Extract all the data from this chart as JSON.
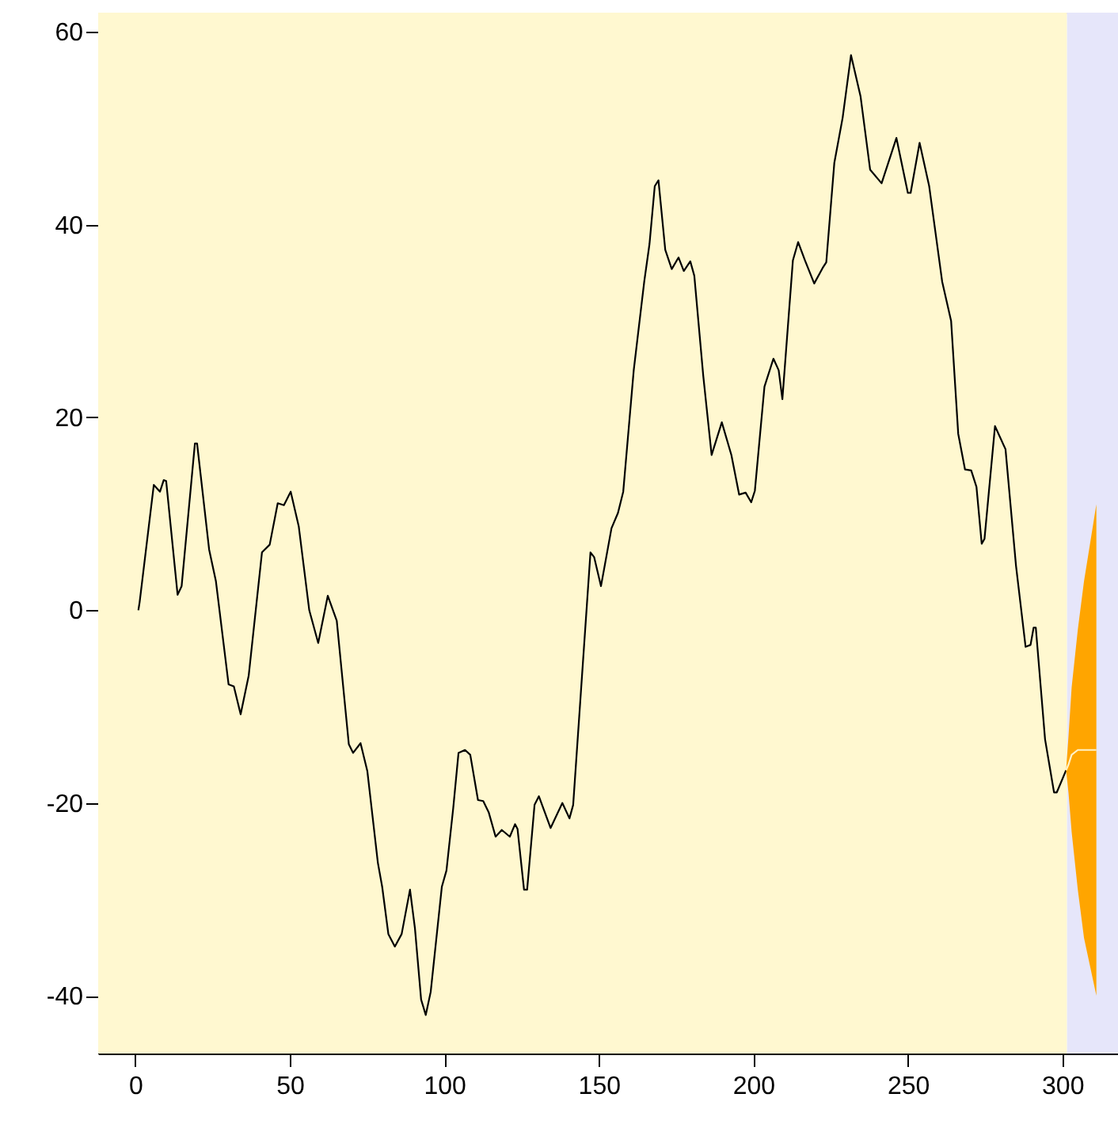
{
  "chart_data": {
    "type": "line",
    "xlim": [
      -12,
      318
    ],
    "ylim": [
      -46,
      62
    ],
    "xticks": [
      0,
      50,
      100,
      150,
      200,
      250,
      300
    ],
    "yticks": [
      -40,
      -20,
      0,
      20,
      40,
      60
    ],
    "grid": false,
    "bands": [
      {
        "axis": "x",
        "from": -12,
        "to": 301.5,
        "color": "#fff8d0"
      },
      {
        "axis": "x",
        "from": 301.5,
        "to": 318,
        "color": "#e6e6fa"
      }
    ],
    "series": [
      {
        "color": "#000000",
        "x": [
          1,
          1.4,
          6,
          8,
          9.2,
          10,
          13.7,
          15,
          19.3,
          20,
          23.9,
          26.1,
          30.2,
          31.9,
          34.1,
          36.7,
          41,
          43.5,
          46.1,
          48.1,
          50.3,
          52.9,
          56.3,
          59.2,
          62.3,
          65.2,
          69.1,
          70.5,
          72.9,
          75.1,
          78.5,
          79.9,
          81.9,
          84,
          86.2,
          88.9,
          90.5,
          92.5,
          94,
          95.6,
          99.2,
          100.7,
          102.9,
          104.6,
          106.7,
          108.4,
          110.9,
          112.6,
          114.4,
          116.6,
          118.6,
          121.2,
          122.9,
          123.7,
          125.8,
          126.8,
          129.2,
          130.6,
          134.4,
          138.2,
          140.5,
          141.7,
          144.2,
          147.3,
          148.5,
          150.7,
          154.1,
          156.2,
          157.9,
          161.3,
          164.7,
          166.4,
          168.1,
          169.3,
          171.5,
          173.6,
          175.8,
          177.5,
          179.6,
          180.9,
          183.8,
          186.5,
          189.8,
          192.9,
          195.4,
          197.5,
          199.3,
          200.5,
          203.6,
          206.5,
          208.2,
          209.4,
          212.8,
          214.5,
          216.7,
          219.7,
          222.4,
          223.6,
          226.2,
          228.9,
          231.6,
          234.7,
          237.8,
          241.5,
          246.3,
          250,
          250.9,
          253.8,
          256.9,
          261.1,
          264,
          266.3,
          268.5,
          270.5,
          272.2,
          273.9,
          274.8,
          278.2,
          281.6,
          285,
          288.1,
          289.7,
          290.7,
          291.4,
          294.4,
          297.3,
          298.2,
          301.2
        ],
        "values": [
          0,
          0.8,
          13,
          12.3,
          13.5,
          13.4,
          1.6,
          2.5,
          17.3,
          17.3,
          6.3,
          3,
          -7.7,
          -7.9,
          -10.8,
          -6.8,
          6,
          6.8,
          11.1,
          10.9,
          12.3,
          8.7,
          0,
          -3.4,
          1.5,
          -1.1,
          -13.9,
          -14.8,
          -13.8,
          -16.7,
          -26.2,
          -28.7,
          -33.6,
          -34.9,
          -33.6,
          -29,
          -33,
          -40.4,
          -42,
          -39.6,
          -28.7,
          -27,
          -20.5,
          -14.8,
          -14.5,
          -15,
          -19.7,
          -19.8,
          -21,
          -23.5,
          -22.8,
          -23.5,
          -22.2,
          -22.7,
          -29,
          -29,
          -20.2,
          -19.3,
          -22.6,
          -20,
          -21.6,
          -20.2,
          -8.5,
          6,
          5.5,
          2.5,
          8.5,
          10.1,
          12.3,
          24.9,
          34.1,
          38,
          44,
          44.6,
          37.4,
          35.4,
          36.6,
          35.2,
          36.2,
          34.7,
          24.3,
          16.1,
          19.5,
          16.1,
          12,
          12.2,
          11.2,
          12.4,
          23.2,
          26.1,
          24.9,
          21.9,
          36.3,
          38.2,
          36.3,
          33.9,
          35.5,
          36.1,
          46.4,
          51.1,
          57.6,
          53.3,
          45.7,
          44.3,
          49,
          43.3,
          43.3,
          48.5,
          44,
          34.1,
          30,
          18.3,
          14.6,
          14.5,
          12.8,
          6.9,
          7.4,
          19.1,
          16.7,
          4.6,
          -3.8,
          -3.6,
          -1.8,
          -1.8,
          -13.4,
          -18.9,
          -18.9,
          -16.6
        ]
      },
      {
        "color": "#fff2c8",
        "x": [
          301.2,
          302,
          303,
          305,
          307,
          309,
          311
        ],
        "values": [
          -16.6,
          -16,
          -15,
          -14.5,
          -14.5,
          -14.5,
          -14.5
        ],
        "lower": [
          -16.6,
          -19,
          -23,
          -29,
          -34,
          -37,
          -40
        ],
        "upper": [
          -16.6,
          -13,
          -8,
          -2,
          3,
          7,
          11
        ]
      }
    ]
  }
}
